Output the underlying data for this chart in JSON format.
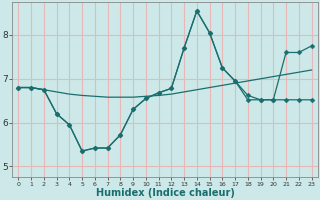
{
  "xlabel": "Humidex (Indice chaleur)",
  "xlim": [
    -0.5,
    23.5
  ],
  "ylim": [
    4.75,
    8.75
  ],
  "yticks": [
    5,
    6,
    7,
    8
  ],
  "xticks": [
    0,
    1,
    2,
    3,
    4,
    5,
    6,
    7,
    8,
    9,
    10,
    11,
    12,
    13,
    14,
    15,
    16,
    17,
    18,
    19,
    20,
    21,
    22,
    23
  ],
  "bg_color": "#cce8e8",
  "line_color": "#1a6e6e",
  "grid_color": "#e8b8b8",
  "line1_x": [
    0,
    1,
    2,
    3,
    4,
    5,
    6,
    7,
    8,
    9,
    10,
    11,
    12,
    13,
    14,
    15,
    16,
    17,
    18,
    19,
    20,
    21,
    22,
    23
  ],
  "line1_y": [
    6.8,
    6.8,
    6.75,
    6.7,
    6.65,
    6.62,
    6.6,
    6.58,
    6.58,
    6.58,
    6.6,
    6.62,
    6.65,
    6.7,
    6.75,
    6.8,
    6.85,
    6.9,
    6.95,
    7.0,
    7.05,
    7.1,
    7.15,
    7.2
  ],
  "line2_x": [
    0,
    1,
    2,
    3,
    4,
    5,
    6,
    7,
    8,
    9,
    10,
    11,
    12,
    13,
    14,
    15,
    16,
    17,
    18,
    19,
    20,
    21,
    22,
    23
  ],
  "line2_y": [
    6.8,
    6.8,
    6.75,
    6.2,
    5.95,
    5.35,
    5.42,
    5.42,
    5.72,
    6.3,
    6.55,
    6.68,
    6.78,
    7.7,
    8.55,
    8.05,
    7.25,
    6.95,
    6.52,
    6.52,
    6.52,
    6.52,
    6.52,
    6.52
  ],
  "line3_x": [
    0,
    1,
    2,
    3,
    4,
    5,
    6,
    7,
    8,
    9,
    10,
    11,
    12,
    13,
    14,
    15,
    16,
    17,
    18,
    19,
    20,
    21,
    22,
    23
  ],
  "line3_y": [
    6.8,
    6.8,
    6.75,
    6.2,
    5.95,
    5.35,
    5.42,
    5.42,
    5.72,
    6.3,
    6.55,
    6.68,
    6.78,
    7.7,
    8.55,
    8.05,
    7.25,
    6.95,
    6.62,
    6.52,
    6.52,
    7.6,
    7.6,
    7.75
  ],
  "marker": "D",
  "markersize": 2.5,
  "linewidth": 0.9
}
